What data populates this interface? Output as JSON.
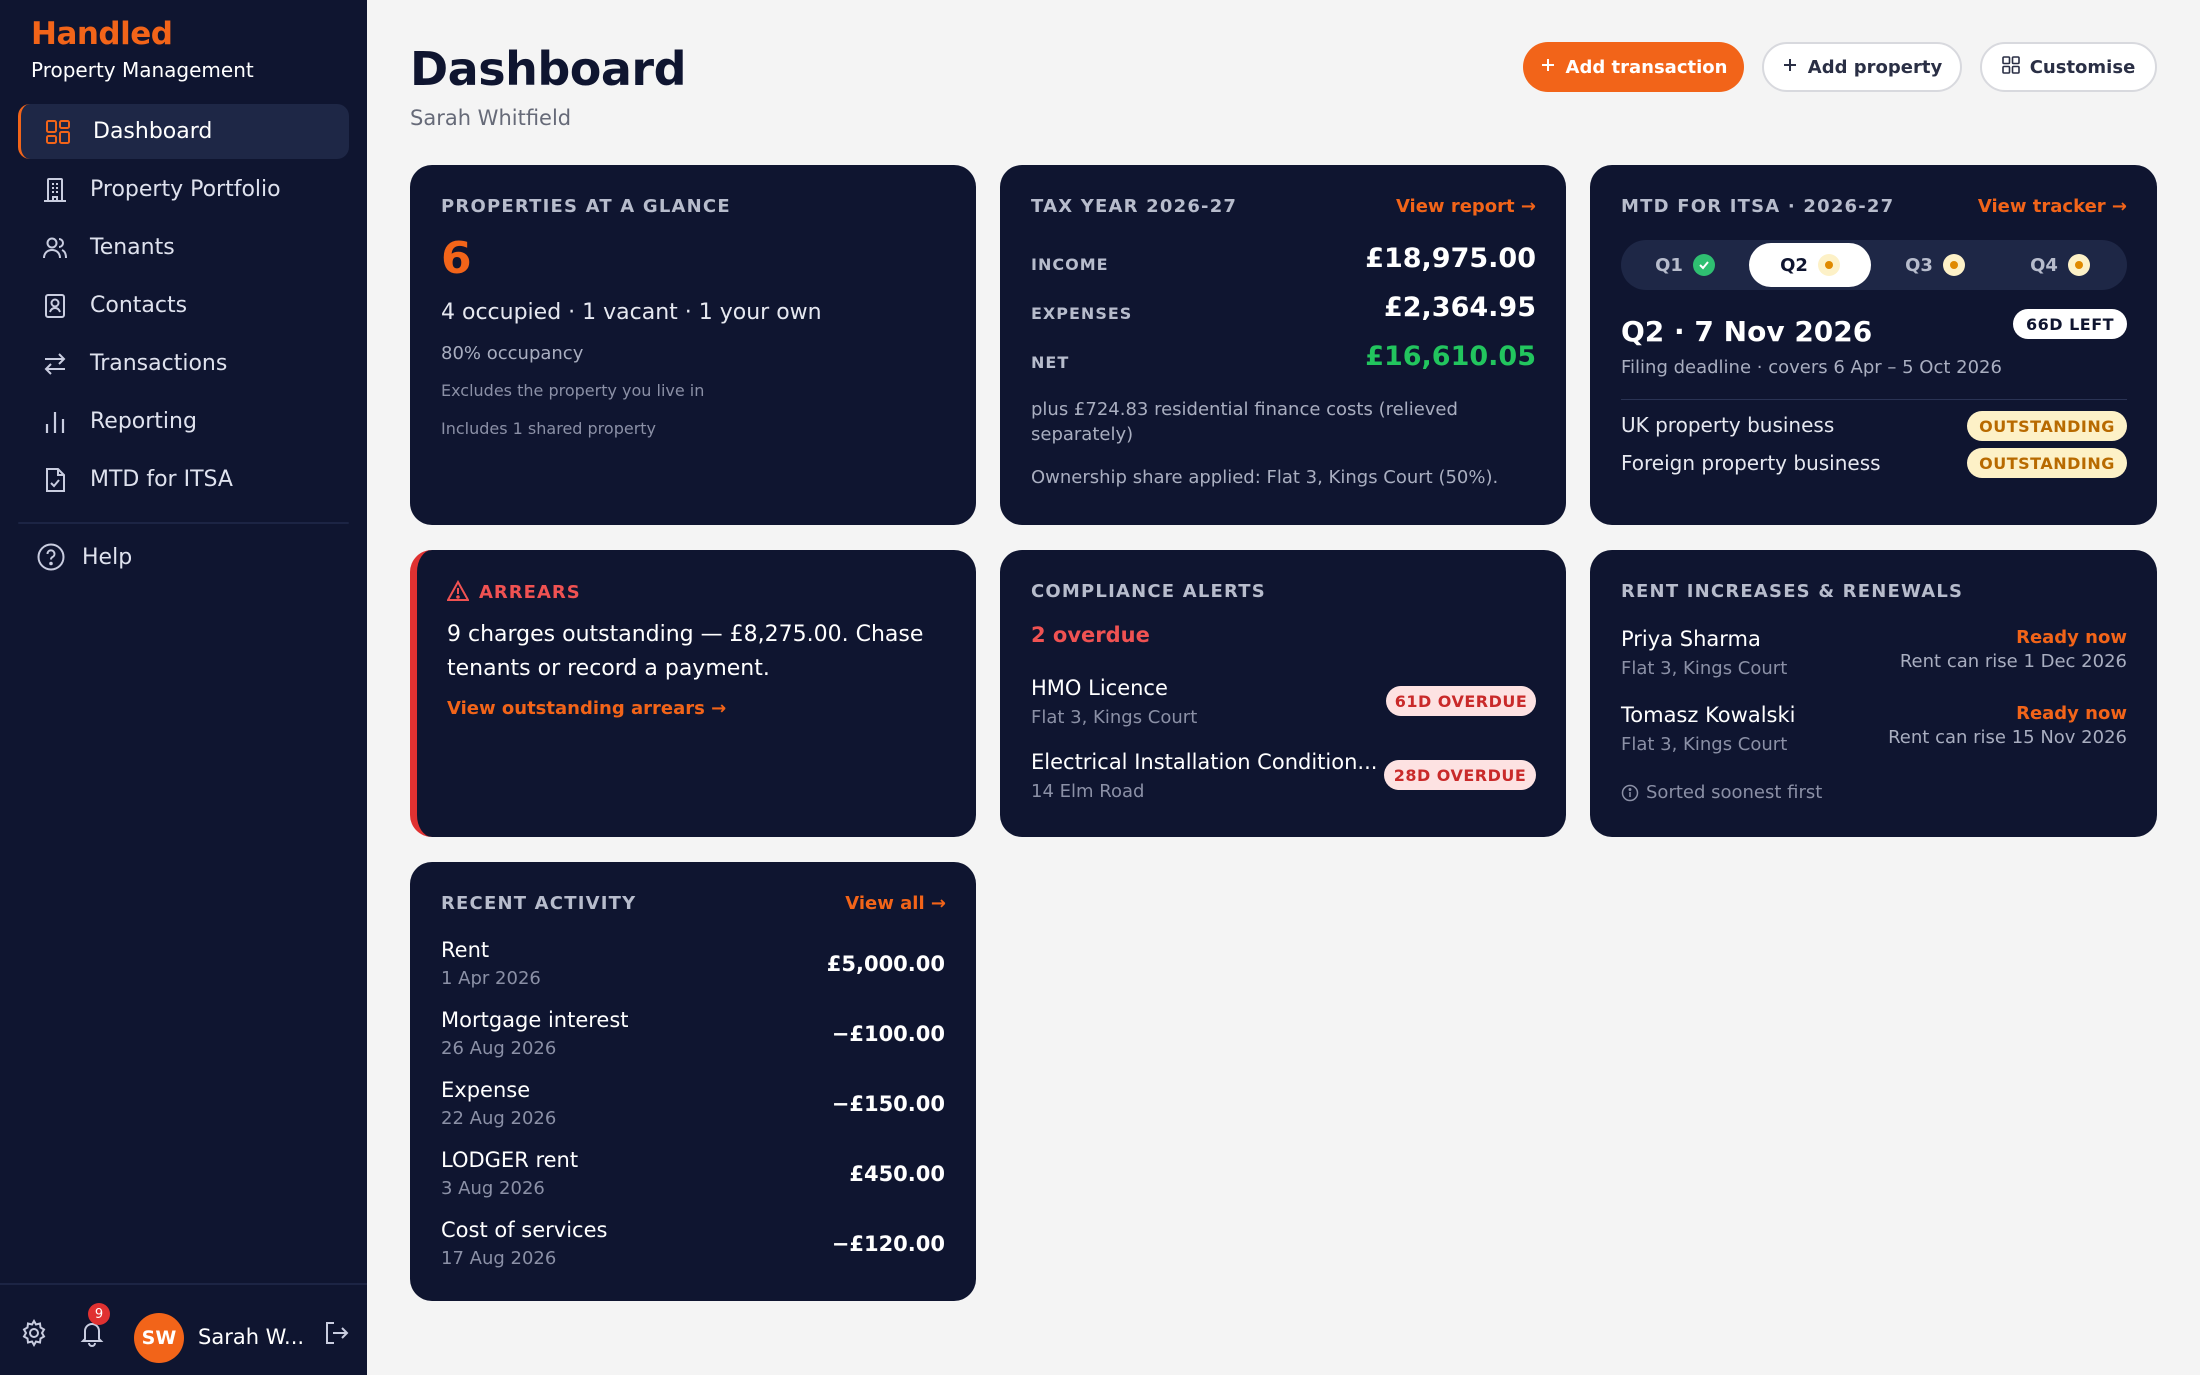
{
  "brand": {
    "name": "Handled",
    "subtitle": "Property Management"
  },
  "nav": [
    {
      "label": "Dashboard",
      "icon": "grid-icon",
      "active": true
    },
    {
      "label": "Property Portfolio",
      "icon": "building-icon"
    },
    {
      "label": "Tenants",
      "icon": "users-icon"
    },
    {
      "label": "Contacts",
      "icon": "contact-card-icon"
    },
    {
      "label": "Transactions",
      "icon": "swap-arrows-icon"
    },
    {
      "label": "Reporting",
      "icon": "bar-chart-icon"
    },
    {
      "label": "MTD for ITSA",
      "icon": "document-check-icon"
    }
  ],
  "help_label": "Help",
  "footer": {
    "notifications": "9",
    "avatar_initials": "SW",
    "user_name": "Sarah W..."
  },
  "header": {
    "title": "Dashboard",
    "subtitle": "Sarah Whitfield"
  },
  "actions": {
    "add_transaction": "Add transaction",
    "add_property": "Add property",
    "customise": "Customise"
  },
  "glance": {
    "label": "PROPERTIES AT A GLANCE",
    "count": "6",
    "breakdown": "4 occupied · 1 vacant · 1 your own",
    "occupancy": "80% occupancy",
    "note1": "Excludes the property you live in",
    "note2": "Includes 1 shared property"
  },
  "tax": {
    "label": "TAX YEAR 2026-27",
    "link": "View report →",
    "income_label": "INCOME",
    "income": "£18,975.00",
    "expenses_label": "EXPENSES",
    "expenses": "£2,364.95",
    "net_label": "NET",
    "net": "£16,610.05",
    "finance_note": "plus £724.83 residential finance costs (relieved separately)",
    "ownership_note": "Ownership share applied: Flat 3, Kings Court (50%)."
  },
  "mtd": {
    "label": "MTD FOR ITSA · 2026-27",
    "link": "View tracker →",
    "quarters": [
      "Q1",
      "Q2",
      "Q3",
      "Q4"
    ],
    "selected": "Q2 · 7 Nov 2026",
    "days_left": "66D LEFT",
    "deadline_note": "Filing deadline · covers 6 Apr – 5 Oct 2026",
    "businesses": [
      {
        "name": "UK property business",
        "status": "OUTSTANDING"
      },
      {
        "name": "Foreign property business",
        "status": "OUTSTANDING"
      }
    ]
  },
  "arrears": {
    "label": "ARREARS",
    "message": "9 charges outstanding — £8,275.00. Chase tenants or record a payment.",
    "link": "View outstanding arrears →"
  },
  "compliance": {
    "label": "COMPLIANCE ALERTS",
    "summary": "2 overdue",
    "items": [
      {
        "title": "HMO Licence",
        "location": "Flat 3, Kings Court",
        "badge": "61D OVERDUE"
      },
      {
        "title": "Electrical Installation Condition...",
        "location": "14 Elm Road",
        "badge": "28D OVERDUE"
      }
    ]
  },
  "renewals": {
    "label": "RENT INCREASES & RENEWALS",
    "items": [
      {
        "name": "Priya Sharma",
        "property": "Flat 3, Kings Court",
        "status": "Ready now",
        "detail": "Rent can rise 1 Dec 2026"
      },
      {
        "name": "Tomasz Kowalski",
        "property": "Flat 3, Kings Court",
        "status": "Ready now",
        "detail": "Rent can rise 15 Nov 2026"
      }
    ],
    "sort_note": "Sorted soonest first"
  },
  "activity": {
    "label": "RECENT ACTIVITY",
    "link": "View all →",
    "items": [
      {
        "name": "Rent",
        "date": "1 Apr 2026",
        "amount": "£5,000.00"
      },
      {
        "name": "Mortgage interest",
        "date": "26 Aug 2026",
        "amount": "−£100.00"
      },
      {
        "name": "Expense",
        "date": "22 Aug 2026",
        "amount": "−£150.00"
      },
      {
        "name": "LODGER rent",
        "date": "3 Aug 2026",
        "amount": "£450.00"
      },
      {
        "name": "Cost of services",
        "date": "17 Aug 2026",
        "amount": "−£120.00"
      }
    ]
  },
  "colors": {
    "accent": "#f26419",
    "navy": "#0f1530",
    "positive": "#22c55e",
    "danger": "#e03131"
  }
}
